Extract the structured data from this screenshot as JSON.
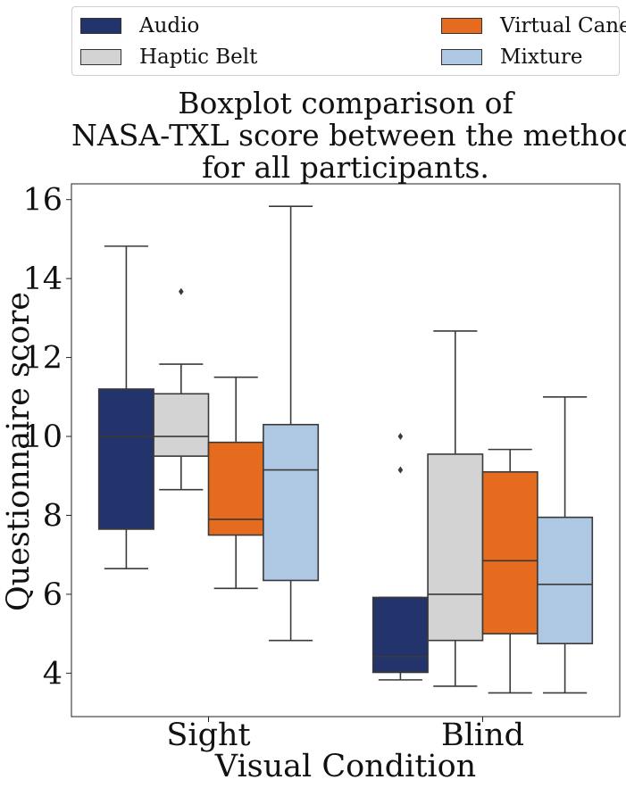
{
  "chart_data": {
    "type": "box",
    "title_lines": [
      "Boxplot comparison of",
      "NASA-TXL score between the methods",
      "for all participants."
    ],
    "xlabel": "Visual Condition",
    "ylabel": "Questionnaire score",
    "categories": [
      "Sight",
      "Blind"
    ],
    "ylim": [
      2.9,
      16.4
    ],
    "yticks": [
      4,
      6,
      8,
      10,
      12,
      14,
      16
    ],
    "ytick_labels": [
      "4",
      "6",
      "8",
      "10",
      "12",
      "14",
      "16"
    ],
    "grid": false,
    "legend_position": "top",
    "series": [
      {
        "name": "Audio",
        "color": "#22346b",
        "boxes": [
          {
            "whisker_low": 6.65,
            "q1": 7.65,
            "median": 10.0,
            "q3": 11.2,
            "whisker_high": 14.82,
            "outliers": []
          },
          {
            "whisker_low": 3.83,
            "q1": 4.02,
            "median": 4.42,
            "q3": 5.92,
            "whisker_high": 5.92,
            "outliers": [
              9.15,
              10.0
            ]
          }
        ]
      },
      {
        "name": "Haptic Belt",
        "color": "#d3d3d3",
        "boxes": [
          {
            "whisker_low": 8.65,
            "q1": 9.5,
            "median": 10.0,
            "q3": 11.08,
            "whisker_high": 11.83,
            "outliers": [
              13.67
            ]
          },
          {
            "whisker_low": 3.67,
            "q1": 4.83,
            "median": 6.0,
            "q3": 9.55,
            "whisker_high": 12.67,
            "outliers": []
          }
        ]
      },
      {
        "name": "Virtual Cane",
        "color": "#e56b1f",
        "boxes": [
          {
            "whisker_low": 6.15,
            "q1": 7.5,
            "median": 7.9,
            "q3": 9.85,
            "whisker_high": 11.5,
            "outliers": []
          },
          {
            "whisker_low": 3.5,
            "q1": 5.0,
            "median": 6.85,
            "q3": 9.1,
            "whisker_high": 9.67,
            "outliers": []
          }
        ]
      },
      {
        "name": "Mixture",
        "color": "#aec7e3",
        "boxes": [
          {
            "whisker_low": 4.83,
            "q1": 6.35,
            "median": 9.15,
            "q3": 10.3,
            "whisker_high": 15.83,
            "outliers": []
          },
          {
            "whisker_low": 3.5,
            "q1": 4.75,
            "median": 6.25,
            "q3": 7.95,
            "whisker_high": 11.0,
            "outliers": []
          }
        ]
      }
    ]
  }
}
